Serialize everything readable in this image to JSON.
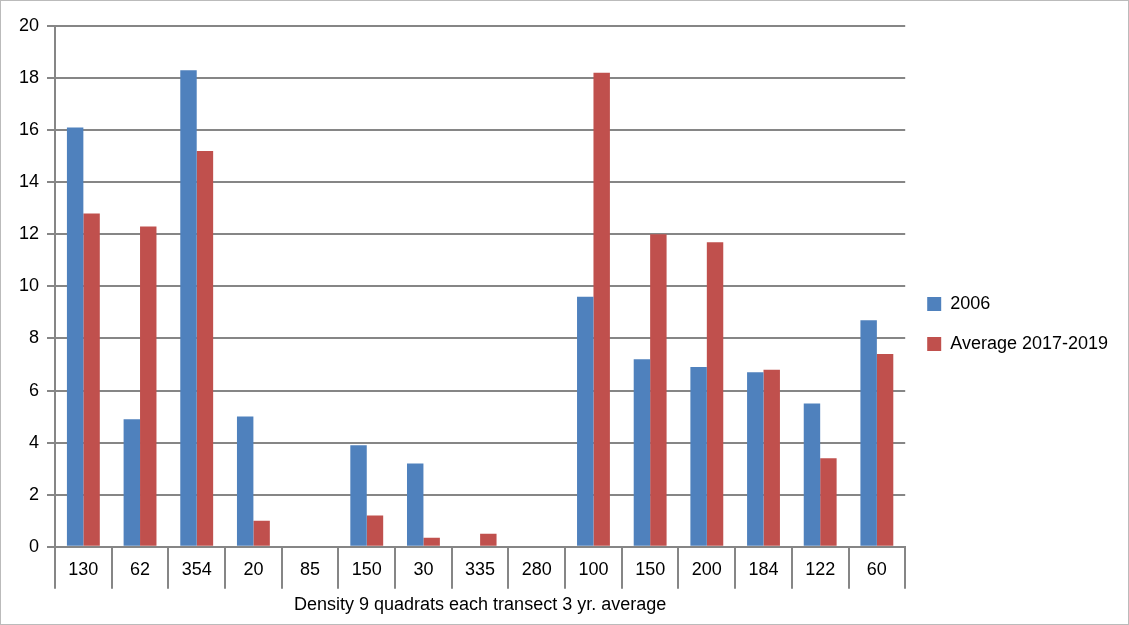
{
  "chart_data": {
    "type": "bar",
    "xlabel": "Density 9 quadrats each transect 3 yr. average",
    "categories": [
      "130",
      "62",
      "354",
      "20",
      "85",
      "150",
      "30",
      "335",
      "280",
      "100",
      "150",
      "200",
      "184",
      "122",
      "60"
    ],
    "series": [
      {
        "name": "2006",
        "color": "#4f81bd",
        "values": [
          16.1,
          4.9,
          18.3,
          5.0,
          0,
          3.9,
          3.2,
          0,
          0,
          9.6,
          7.2,
          6.9,
          6.7,
          5.5,
          8.7
        ]
      },
      {
        "name": "Average 2017-2019",
        "color": "#c0504d",
        "values": [
          12.8,
          12.3,
          15.2,
          1.0,
          0,
          1.2,
          0.35,
          0.5,
          0,
          18.2,
          12.0,
          11.7,
          6.8,
          3.4,
          7.4
        ]
      }
    ],
    "ylim": [
      0,
      20
    ],
    "yticks": [
      0,
      2,
      4,
      6,
      8,
      10,
      12,
      14,
      16,
      18,
      20
    ],
    "grid": "y",
    "legend": "right"
  }
}
